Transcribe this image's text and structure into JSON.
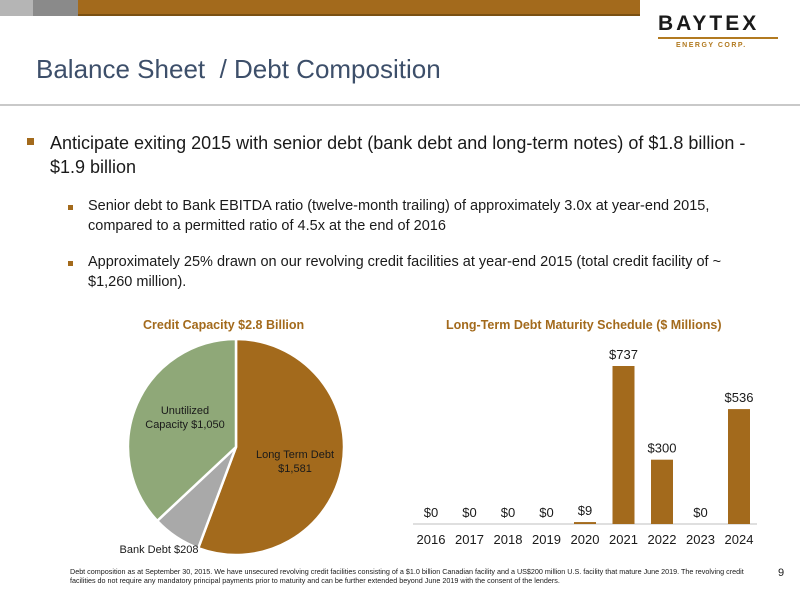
{
  "header": {
    "title": "Balance Sheet  / Debt Composition"
  },
  "logo": {
    "name": "BAYTEX",
    "subtitle": "ENERGY CORP."
  },
  "bullets": {
    "main": "Anticipate exiting 2015 with senior debt (bank debt and long-term notes) of $1.8 billion - $1.9 billion",
    "sub1": "Senior debt to Bank EBITDA ratio (twelve-month trailing) of approximately 3.0x at year-end 2015, compared to a permitted ratio of 4.5x at the end of 2016",
    "sub2": "Approximately 25% drawn on our revolving credit facilities at year-end 2015 (total credit facility of ~ $1,260 million)."
  },
  "chart_data": [
    {
      "type": "pie",
      "title": "Credit Capacity $2.8 Billion",
      "slices": [
        {
          "label_line1": "Long Term Debt",
          "label_line2": "$1,581",
          "value": 1581,
          "color": "#a36a1c"
        },
        {
          "label_line1": "Bank Debt $208",
          "label_line2": "",
          "value": 208,
          "color": "#a9a9a9"
        },
        {
          "label_line1": "Unutilized",
          "label_line2": "Capacity $1,050",
          "value": 1050,
          "color": "#8fa878"
        }
      ]
    },
    {
      "type": "bar",
      "title": "Long-Term Debt Maturity Schedule ($ Millions)",
      "categories": [
        "2016",
        "2017",
        "2018",
        "2019",
        "2020",
        "2021",
        "2022",
        "2023",
        "2024"
      ],
      "values": [
        0,
        0,
        0,
        0,
        9,
        737,
        300,
        0,
        536
      ],
      "labels": [
        "$0",
        "$0",
        "$0",
        "$0",
        "$9",
        "$737",
        "$300",
        "$0",
        "$536"
      ],
      "color": "#a36a1c"
    }
  ],
  "footnote": "Debt composition as at September 30, 2015. We have unsecured revolving credit facilities consisting of a $1.0 billion Canadian facility and a US$200 million U.S. facility that mature June 2019. The revolving credit facilities do not require any mandatory principal payments prior to maturity and can be further extended beyond June 2019 with the consent of the lenders.",
  "page_number": "9"
}
